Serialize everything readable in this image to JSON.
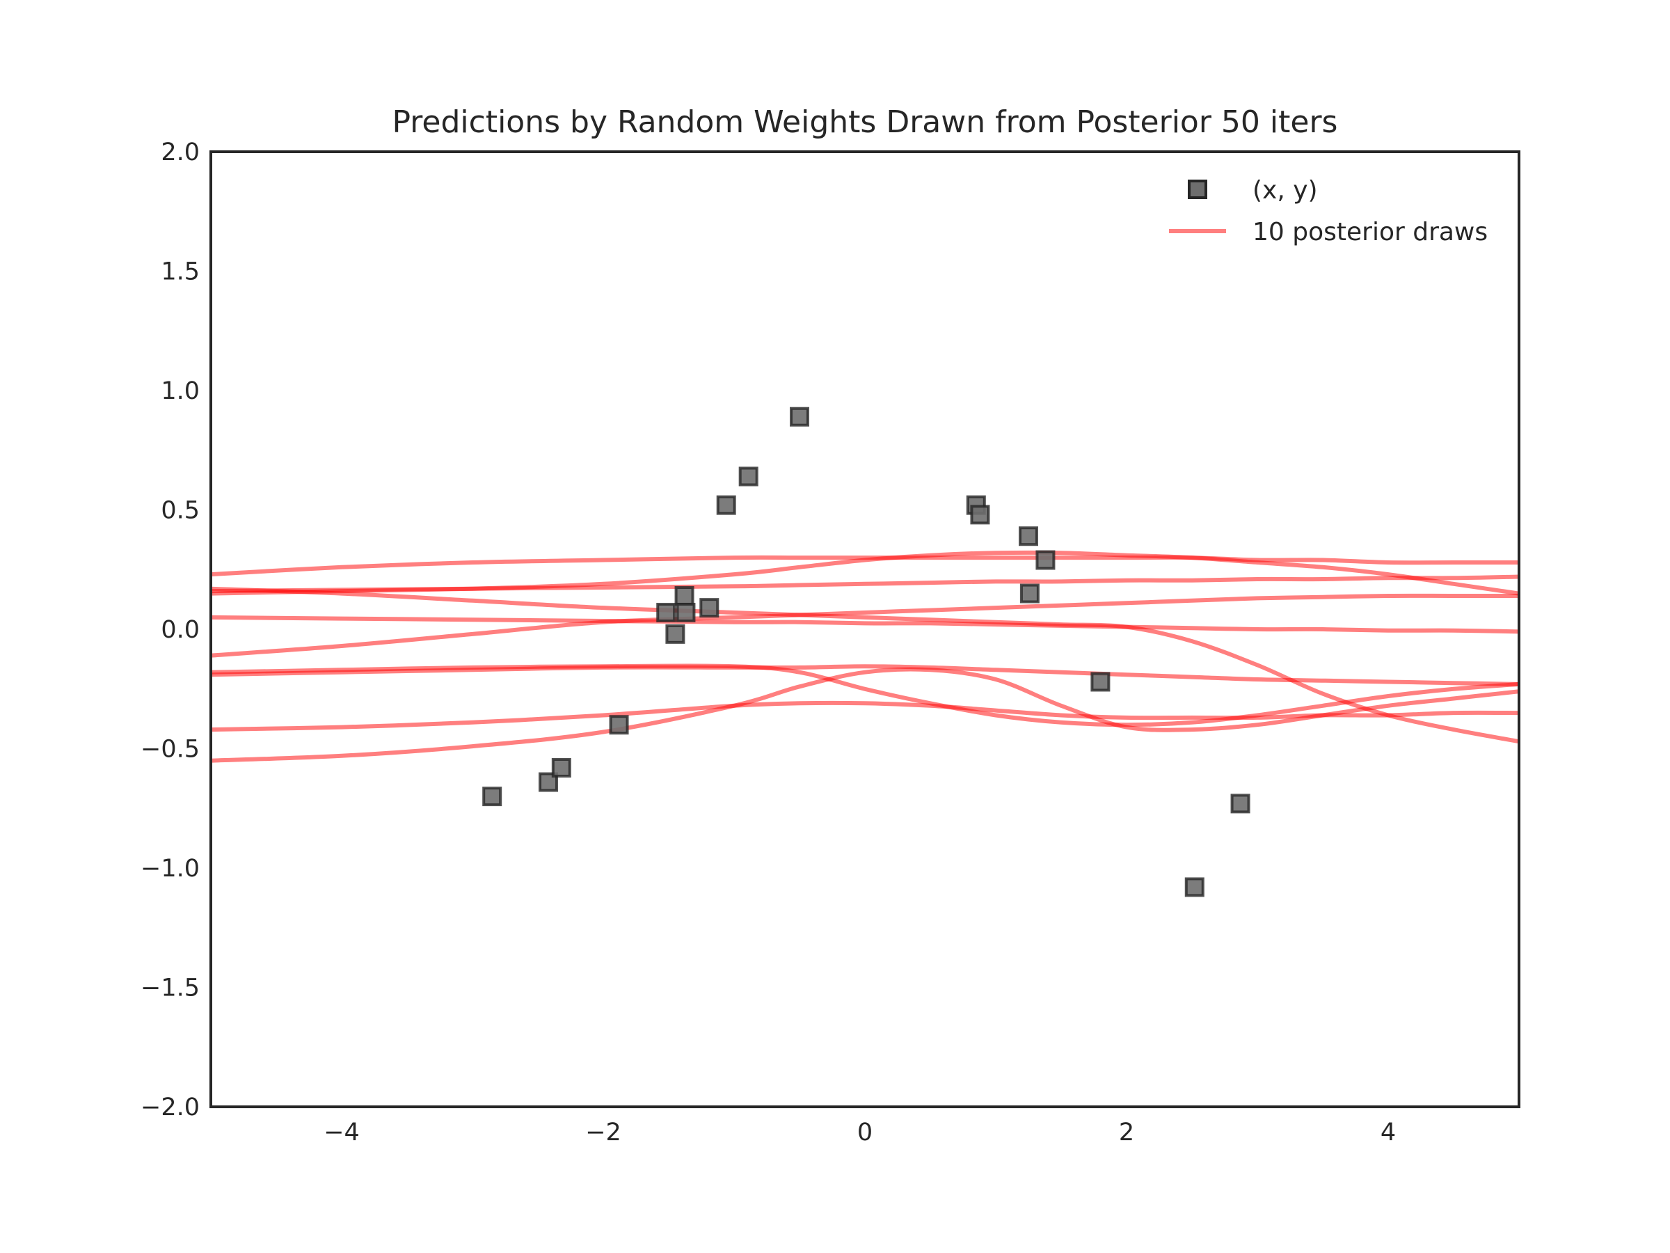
{
  "chart_data": {
    "type": "scatter",
    "title": "Predictions by Random Weights Drawn from Posterior 50 iters",
    "xlabel": "",
    "ylabel": "",
    "xlim": [
      -5,
      5
    ],
    "ylim": [
      -2,
      2
    ],
    "xticks": [
      -4,
      -2,
      0,
      2,
      4
    ],
    "xtick_labels": [
      "−4",
      "−2",
      "0",
      "2",
      "4"
    ],
    "yticks": [
      2.0,
      1.5,
      1.0,
      0.5,
      0.0,
      -0.5,
      -1.0,
      -1.5,
      -2.0
    ],
    "ytick_labels": [
      "2.0",
      "1.5",
      "1.0",
      "0.5",
      "0.0",
      "−0.5",
      "−1.0",
      "−1.5",
      "−2.0"
    ],
    "grid": false,
    "legend": {
      "placement": "top-right",
      "entries": [
        {
          "label": "(x, y)",
          "kind": "marker"
        },
        {
          "label": "10 posterior draws",
          "kind": "line"
        }
      ]
    },
    "colors": {
      "points_fill": "#6e6e6e",
      "points_edge": "#262626",
      "draws": "#ff0000",
      "axes": "#262626"
    },
    "points": {
      "name": "(x, y)",
      "x": [
        -2.85,
        -2.42,
        -2.32,
        -1.88,
        -1.52,
        -1.45,
        -1.38,
        -1.37,
        -1.19,
        -1.06,
        -0.89,
        -0.5,
        0.85,
        0.88,
        1.25,
        1.26,
        1.38,
        1.8,
        2.52,
        2.87
      ],
      "y": [
        -0.7,
        -0.64,
        -0.58,
        -0.4,
        0.07,
        -0.02,
        0.14,
        0.07,
        0.09,
        0.52,
        0.64,
        0.89,
        0.52,
        0.48,
        0.39,
        0.15,
        0.29,
        -0.22,
        -1.08,
        -0.73
      ]
    },
    "draws": {
      "name": "10 posterior draws",
      "x": [
        -5,
        -4,
        -3,
        -2,
        -1,
        -0.5,
        0,
        0.5,
        1,
        1.5,
        2,
        2.5,
        3,
        3.5,
        4,
        4.5,
        5
      ],
      "series": [
        {
          "y": [
            0.23,
            0.26,
            0.28,
            0.29,
            0.3,
            0.3,
            0.3,
            0.3,
            0.3,
            0.3,
            0.3,
            0.3,
            0.29,
            0.29,
            0.28,
            0.28,
            0.28
          ]
        },
        {
          "y": [
            0.15,
            0.16,
            0.17,
            0.19,
            0.23,
            0.26,
            0.29,
            0.31,
            0.32,
            0.32,
            0.31,
            0.3,
            0.28,
            0.26,
            0.23,
            0.19,
            0.15
          ]
        },
        {
          "y": [
            0.16,
            0.165,
            0.17,
            0.175,
            0.18,
            0.185,
            0.19,
            0.195,
            0.2,
            0.2,
            0.205,
            0.205,
            0.21,
            0.21,
            0.215,
            0.215,
            0.22
          ]
        },
        {
          "y": [
            0.17,
            0.15,
            0.12,
            0.09,
            0.07,
            0.06,
            0.05,
            0.04,
            0.03,
            0.02,
            0.01,
            -0.05,
            -0.15,
            -0.27,
            -0.36,
            -0.42,
            -0.47
          ]
        },
        {
          "y": [
            0.05,
            0.045,
            0.04,
            0.035,
            0.03,
            0.03,
            0.025,
            0.025,
            0.02,
            0.015,
            0.01,
            0.005,
            0.0,
            0.0,
            -0.005,
            -0.005,
            -0.01
          ]
        },
        {
          "y": [
            -0.11,
            -0.07,
            -0.02,
            0.03,
            0.05,
            0.06,
            0.07,
            0.08,
            0.09,
            0.1,
            0.11,
            0.12,
            0.13,
            0.135,
            0.14,
            0.14,
            0.14
          ]
        },
        {
          "y": [
            -0.18,
            -0.17,
            -0.16,
            -0.155,
            -0.155,
            -0.18,
            -0.25,
            -0.31,
            -0.36,
            -0.39,
            -0.4,
            -0.39,
            -0.36,
            -0.32,
            -0.28,
            -0.25,
            -0.23
          ]
        },
        {
          "y": [
            -0.19,
            -0.18,
            -0.17,
            -0.16,
            -0.16,
            -0.16,
            -0.155,
            -0.16,
            -0.17,
            -0.18,
            -0.19,
            -0.2,
            -0.21,
            -0.215,
            -0.22,
            -0.225,
            -0.23
          ]
        },
        {
          "y": [
            -0.42,
            -0.41,
            -0.39,
            -0.36,
            -0.32,
            -0.31,
            -0.31,
            -0.32,
            -0.34,
            -0.36,
            -0.37,
            -0.37,
            -0.37,
            -0.36,
            -0.36,
            -0.35,
            -0.35
          ]
        },
        {
          "y": [
            -0.55,
            -0.53,
            -0.49,
            -0.43,
            -0.32,
            -0.24,
            -0.18,
            -0.17,
            -0.21,
            -0.32,
            -0.41,
            -0.42,
            -0.4,
            -0.36,
            -0.32,
            -0.29,
            -0.26
          ]
        }
      ]
    }
  }
}
